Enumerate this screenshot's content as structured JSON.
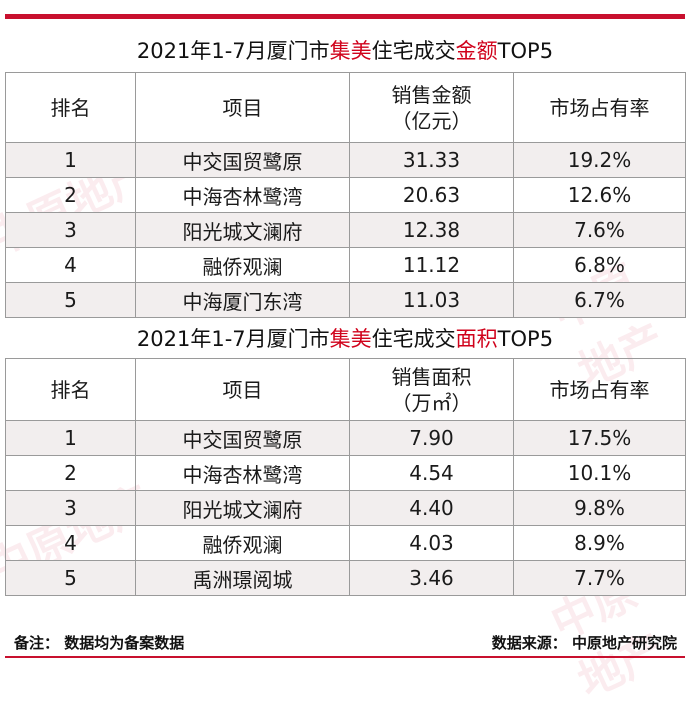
{
  "table1": {
    "title_prefix": "2021年1-7月厦门市",
    "title_district": "集美",
    "title_middle": "住宅成交",
    "title_metric": "金额",
    "title_suffix": "TOP5",
    "headers": [
      "排名",
      "项目",
      "销售金额",
      "（亿元）",
      "市场占有率"
    ],
    "rows": [
      {
        "rank": "1",
        "project": "中交国贸鹭原",
        "value": "31.33",
        "share": "19.2%"
      },
      {
        "rank": "2",
        "project": "中海杏林鹭湾",
        "value": "20.63",
        "share": "12.6%"
      },
      {
        "rank": "3",
        "project": "阳光城文澜府",
        "value": "12.38",
        "share": "7.6%"
      },
      {
        "rank": "4",
        "project": "融侨观澜",
        "value": "11.12",
        "share": "6.8%"
      },
      {
        "rank": "5",
        "project": "中海厦门东湾",
        "value": "11.03",
        "share": "6.7%"
      }
    ]
  },
  "table2": {
    "title_prefix": "2021年1-7月厦门市",
    "title_district": "集美",
    "title_middle": "住宅成交",
    "title_metric": "面积",
    "title_suffix": "TOP5",
    "headers": [
      "排名",
      "项目",
      "销售面积",
      "（万㎡）",
      "市场占有率"
    ],
    "rows": [
      {
        "rank": "1",
        "project": "中交国贸鹭原",
        "value": "7.90",
        "share": "17.5%"
      },
      {
        "rank": "2",
        "project": "中海杏林鹭湾",
        "value": "4.54",
        "share": "10.1%"
      },
      {
        "rank": "3",
        "project": "阳光城文澜府",
        "value": "4.40",
        "share": "9.8%"
      },
      {
        "rank": "4",
        "project": "融侨观澜",
        "value": "4.03",
        "share": "8.9%"
      },
      {
        "rank": "5",
        "project": "禹洲璟阅城",
        "value": "3.46",
        "share": "7.7%"
      }
    ]
  },
  "footer": {
    "note": "备注：  数据均为备案数据",
    "source": "数据来源：  中原地产研究院"
  },
  "watermark": "中原地产",
  "colors": {
    "accent": "#c8102e",
    "highlight": "#d0021b",
    "stripe": "#f2eeee"
  }
}
